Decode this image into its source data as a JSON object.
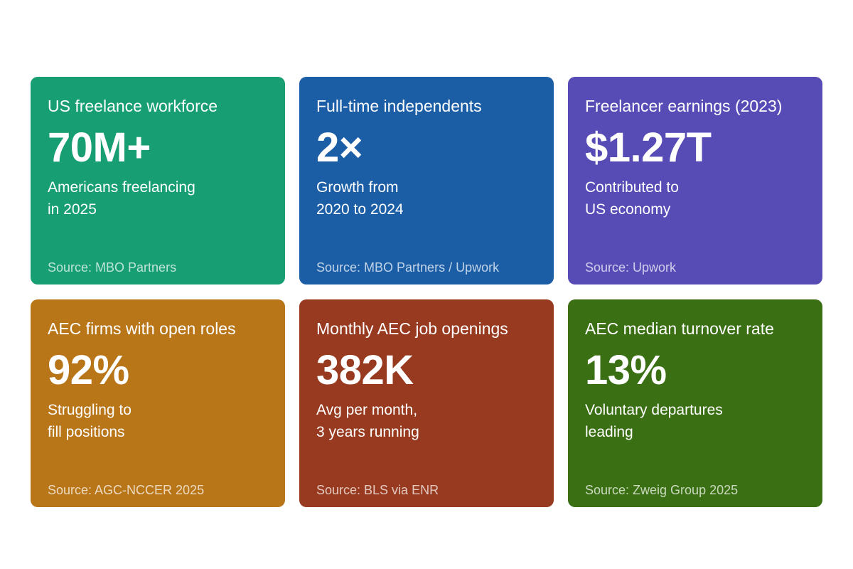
{
  "cards": [
    {
      "label": "US freelance workforce",
      "value": "70M+",
      "desc_line1": "Americans freelancing",
      "desc_line2": "in 2025",
      "source": "Source: MBO Partners",
      "color": "#179E72"
    },
    {
      "label": "Full-time independents",
      "value": "2×",
      "desc_line1": "Growth from",
      "desc_line2": "2020 to 2024",
      "source": "Source: MBO Partners / Upwork",
      "color": "#1B5EA6"
    },
    {
      "label": "Freelancer earnings (2023)",
      "value": "$1.27T",
      "desc_line1": "Contributed to",
      "desc_line2": "US economy",
      "source": "Source: Upwork",
      "color": "#574BB6"
    },
    {
      "label": "AEC firms with open roles",
      "value": "92%",
      "desc_line1": "Struggling to",
      "desc_line2": "fill positions",
      "source": "Source: AGC-NCCER 2025",
      "color": "#B97619"
    },
    {
      "label": "Monthly AEC job openings",
      "value": "382K",
      "desc_line1": "Avg per month,",
      "desc_line2": "3 years running",
      "source": "Source: BLS via ENR",
      "color": "#983A1F"
    },
    {
      "label": "AEC median turnover rate",
      "value": "13%",
      "desc_line1": "Voluntary departures",
      "desc_line2": "leading",
      "source": "Source: Zweig Group 2025",
      "color": "#3A6F13"
    }
  ]
}
